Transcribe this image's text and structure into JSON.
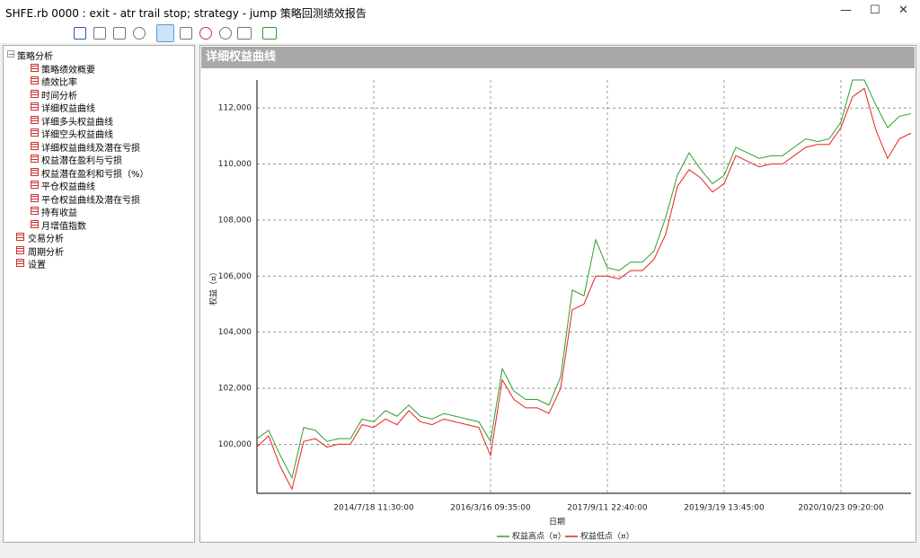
{
  "window": {
    "title": "SHFE.rb 0000 : exit - atr trail stop; strategy - jump 策略回测绩效报告"
  },
  "tree": [
    {
      "label": "策略分析",
      "children": [
        {
          "label": "策略绩效概要"
        },
        {
          "label": "绩效比率"
        },
        {
          "label": "时间分析"
        },
        {
          "label": "详细权益曲线"
        },
        {
          "label": "详细多头权益曲线"
        },
        {
          "label": "详细空头权益曲线"
        },
        {
          "label": "详细权益曲线及潜在亏损"
        },
        {
          "label": "权益潜在盈利与亏损"
        },
        {
          "label": "权益潜在盈利和亏损（%）"
        },
        {
          "label": "平仓权益曲线"
        },
        {
          "label": "平仓权益曲线及潜在亏损"
        },
        {
          "label": "持有收益"
        },
        {
          "label": "月增值指数"
        }
      ]
    },
    {
      "label": "交易分析"
    },
    {
      "label": "周期分析"
    },
    {
      "label": "设置"
    }
  ],
  "panel": {
    "title": "详细权益曲线"
  },
  "chart_data": {
    "type": "line",
    "x_label": "日期",
    "y_label": "权益（¤）",
    "x": [
      0,
      1,
      2,
      3,
      4,
      5,
      6,
      7,
      8,
      9,
      10,
      11,
      12,
      13,
      14,
      15,
      16,
      17,
      18,
      19,
      20,
      21,
      22,
      23,
      24,
      25,
      26,
      27,
      28,
      29,
      30,
      31,
      32,
      33,
      34,
      35,
      36,
      37,
      38,
      39,
      40,
      41,
      42,
      43,
      44,
      45,
      46,
      47,
      48,
      49,
      50,
      51,
      52,
      53,
      54,
      55,
      56
    ],
    "series": [
      {
        "name": "权益高点（¤）",
        "color": "#2ca02c",
        "values": [
          100200,
          100500,
          99600,
          98800,
          100600,
          100500,
          100100,
          100200,
          100200,
          100900,
          100800,
          101200,
          101000,
          101400,
          101000,
          100900,
          101100,
          101000,
          100900,
          100800,
          100100,
          102700,
          101900,
          101600,
          101600,
          101400,
          102400,
          105500,
          105300,
          107300,
          106300,
          106200,
          106500,
          106500,
          106900,
          108100,
          109600,
          110400,
          109800,
          109300,
          109600,
          110600,
          110400,
          110200,
          110300,
          110300,
          110600,
          110900,
          110800,
          110900,
          111500,
          113000,
          113000,
          112100,
          111300,
          111700,
          111800
        ]
      },
      {
        "name": "权益低点（¤）",
        "color": "#e8211d",
        "values": [
          99900,
          100300,
          99200,
          98400,
          100100,
          100200,
          99900,
          100000,
          100000,
          100700,
          100600,
          100900,
          100700,
          101200,
          100800,
          100700,
          100900,
          100800,
          100700,
          100600,
          99600,
          102300,
          101600,
          101300,
          101300,
          101100,
          102000,
          104800,
          105000,
          106000,
          106000,
          105900,
          106200,
          106200,
          106600,
          107500,
          109200,
          109800,
          109500,
          109000,
          109300,
          110300,
          110100,
          109900,
          110000,
          110000,
          110300,
          110600,
          110700,
          110700,
          111300,
          112400,
          112700,
          111200,
          110200,
          110900,
          111100
        ]
      }
    ],
    "xlim": [
      0,
      56
    ],
    "xticks": [
      {
        "value": 10,
        "label": "2014/7/18 11:30:00"
      },
      {
        "value": 20,
        "label": "2016/3/16 09:35:00"
      },
      {
        "value": 30,
        "label": "2017/9/11 22:40:00"
      },
      {
        "value": 40,
        "label": "2019/3/19 13:45:00"
      },
      {
        "value": 50,
        "label": "2020/10/23 09:20:00"
      }
    ],
    "ylim": [
      98250,
      113000
    ],
    "yticks": [
      {
        "value": 100000,
        "label": "100,000"
      },
      {
        "value": 102000,
        "label": "102,000"
      },
      {
        "value": 104000,
        "label": "104,000"
      },
      {
        "value": 106000,
        "label": "106,000"
      },
      {
        "value": 108000,
        "label": "108,000"
      },
      {
        "value": 110000,
        "label": "110,000"
      },
      {
        "value": 112000,
        "label": "112,000"
      }
    ],
    "grid": true
  }
}
